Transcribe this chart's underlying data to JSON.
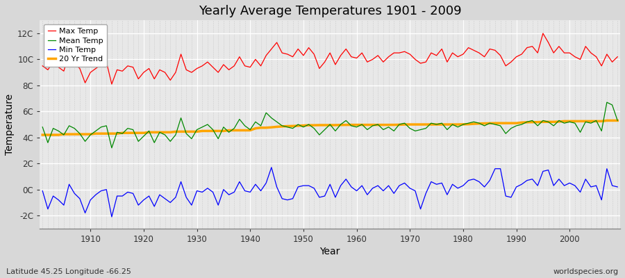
{
  "title": "Yearly Average Temperatures 1901 - 2009",
  "xlabel": "Year",
  "ylabel": "Temperature",
  "year_start": 1901,
  "year_end": 2009,
  "ylim": [
    -3,
    13
  ],
  "yticks": [
    -2,
    0,
    2,
    4,
    6,
    8,
    10,
    12
  ],
  "ytick_labels": [
    "-2C",
    "0C",
    "2C",
    "4C",
    "6C",
    "8C",
    "10C",
    "12C"
  ],
  "fig_bg_color": "#d8d8d8",
  "plot_bg_color": "#e8e8e8",
  "grid_color_major": "#ffffff",
  "grid_color_minor": "#dddddd",
  "colors": {
    "max": "#ff0000",
    "mean": "#008800",
    "min": "#0000ff",
    "trend": "#ffa500"
  },
  "legend_labels": [
    "Max Temp",
    "Mean Temp",
    "Min Temp",
    "20 Yr Trend"
  ],
  "footnote_left": "Latitude 45.25 Longitude -66.25",
  "footnote_right": "worldspecies.org",
  "max_temp": [
    9.5,
    9.2,
    9.8,
    9.4,
    9.1,
    10.5,
    9.7,
    9.3,
    8.2,
    9.0,
    9.3,
    9.6,
    9.8,
    8.1,
    9.2,
    9.1,
    9.5,
    9.4,
    8.5,
    9.0,
    9.3,
    8.5,
    9.2,
    9.0,
    8.4,
    9.0,
    10.4,
    9.2,
    9.0,
    9.3,
    9.5,
    9.8,
    9.4,
    9.0,
    9.6,
    9.2,
    9.5,
    10.2,
    9.5,
    9.4,
    10.0,
    9.5,
    10.3,
    10.8,
    11.3,
    10.5,
    10.4,
    10.2,
    10.8,
    10.3,
    10.9,
    10.4,
    9.3,
    9.8,
    10.5,
    9.6,
    10.3,
    10.8,
    10.2,
    10.1,
    10.5,
    9.8,
    10.0,
    10.3,
    9.8,
    10.2,
    10.5,
    10.5,
    10.6,
    10.4,
    10.0,
    9.7,
    9.8,
    10.5,
    10.3,
    10.8,
    9.8,
    10.5,
    10.2,
    10.4,
    10.9,
    10.7,
    10.5,
    10.2,
    10.8,
    10.7,
    10.3,
    9.5,
    9.8,
    10.2,
    10.4,
    10.9,
    11.0,
    10.5,
    12.0,
    11.3,
    10.5,
    11.0,
    10.5,
    10.5,
    10.2,
    10.0,
    11.0,
    10.5,
    10.2,
    9.5,
    10.4,
    9.8,
    10.2
  ],
  "mean_temp": [
    4.8,
    3.6,
    4.7,
    4.5,
    4.2,
    4.9,
    4.7,
    4.3,
    3.7,
    4.2,
    4.5,
    4.8,
    4.9,
    3.2,
    4.4,
    4.3,
    4.7,
    4.6,
    3.7,
    4.1,
    4.5,
    3.6,
    4.4,
    4.2,
    3.7,
    4.2,
    5.5,
    4.3,
    3.9,
    4.6,
    4.8,
    5.0,
    4.6,
    3.9,
    4.8,
    4.4,
    4.7,
    5.4,
    4.9,
    4.6,
    5.2,
    4.9,
    5.9,
    5.5,
    5.2,
    4.9,
    4.8,
    4.7,
    5.0,
    4.8,
    5.0,
    4.7,
    4.2,
    4.6,
    5.0,
    4.5,
    5.0,
    5.3,
    4.9,
    4.8,
    5.0,
    4.6,
    4.9,
    5.0,
    4.6,
    4.8,
    4.5,
    5.0,
    5.1,
    4.7,
    4.5,
    4.6,
    4.7,
    5.1,
    5.0,
    5.1,
    4.6,
    5.0,
    4.8,
    5.0,
    5.1,
    5.2,
    5.1,
    4.9,
    5.1,
    5.0,
    4.9,
    4.3,
    4.7,
    4.9,
    5.0,
    5.2,
    5.3,
    4.9,
    5.3,
    5.2,
    4.9,
    5.3,
    5.1,
    5.2,
    5.1,
    4.4,
    5.2,
    5.1,
    5.3,
    4.5,
    6.7,
    6.5,
    5.3
  ],
  "min_temp": [
    -0.1,
    -1.5,
    -0.5,
    -0.8,
    -1.2,
    0.4,
    -0.3,
    -0.7,
    -1.8,
    -0.8,
    -0.4,
    -0.1,
    0.0,
    -2.1,
    -0.5,
    -0.5,
    -0.2,
    -0.3,
    -1.2,
    -0.8,
    -0.5,
    -1.3,
    -0.4,
    -0.7,
    -1.0,
    -0.6,
    0.6,
    -0.6,
    -1.2,
    -0.1,
    -0.2,
    0.1,
    -0.2,
    -1.2,
    0.0,
    -0.4,
    -0.2,
    0.6,
    -0.1,
    -0.2,
    0.4,
    -0.1,
    0.5,
    1.7,
    0.2,
    -0.7,
    -0.8,
    -0.7,
    0.2,
    0.3,
    0.3,
    0.1,
    -0.6,
    -0.5,
    0.4,
    -0.6,
    0.3,
    0.8,
    0.2,
    -0.1,
    0.3,
    -0.4,
    0.1,
    0.3,
    -0.1,
    0.3,
    -0.3,
    0.3,
    0.5,
    0.1,
    -0.1,
    -1.5,
    -0.3,
    0.6,
    0.4,
    0.5,
    -0.4,
    0.4,
    0.1,
    0.3,
    0.7,
    0.8,
    0.6,
    0.2,
    0.7,
    1.6,
    1.6,
    -0.5,
    -0.6,
    0.2,
    0.4,
    0.7,
    0.8,
    0.3,
    1.4,
    1.5,
    0.3,
    0.8,
    0.3,
    0.5,
    0.3,
    -0.2,
    0.8,
    0.2,
    0.3,
    -0.8,
    1.6,
    0.3,
    0.2
  ],
  "trend": [
    4.2,
    4.2,
    4.2,
    4.2,
    4.25,
    4.25,
    4.25,
    4.25,
    4.25,
    4.25,
    4.3,
    4.3,
    4.3,
    4.3,
    4.3,
    4.35,
    4.35,
    4.35,
    4.35,
    4.35,
    4.4,
    4.4,
    4.4,
    4.4,
    4.4,
    4.45,
    4.45,
    4.45,
    4.45,
    4.45,
    4.5,
    4.5,
    4.5,
    4.5,
    4.5,
    4.55,
    4.55,
    4.55,
    4.55,
    4.55,
    4.7,
    4.75,
    4.75,
    4.78,
    4.82,
    4.85,
    4.87,
    4.88,
    4.9,
    4.92,
    4.94,
    4.94,
    4.95,
    4.95,
    4.95,
    4.95,
    4.96,
    4.97,
    4.97,
    4.97,
    4.97,
    4.97,
    4.97,
    4.97,
    4.97,
    4.97,
    4.97,
    4.98,
    5.0,
    5.0,
    5.0,
    5.0,
    5.0,
    5.0,
    5.0,
    5.0,
    5.0,
    5.0,
    5.0,
    5.01,
    5.02,
    5.05,
    5.07,
    5.08,
    5.09,
    5.1,
    5.1,
    5.1,
    5.1,
    5.1,
    5.15,
    5.17,
    5.18,
    5.18,
    5.2,
    5.2,
    5.2,
    5.22,
    5.25,
    5.25,
    5.25,
    5.25,
    5.25,
    5.25,
    5.25,
    5.25,
    5.3,
    5.3,
    5.3
  ]
}
